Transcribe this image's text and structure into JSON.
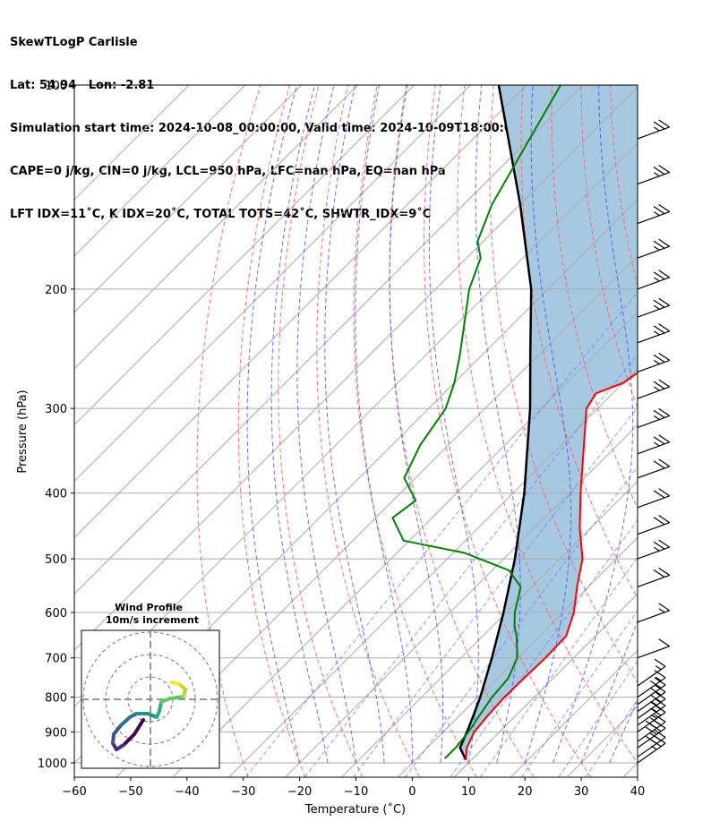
{
  "header": {
    "line1": "SkewTLogP Carlisle",
    "line2": "Lat: 54.94   Lon: -2.81",
    "line3": "Simulation start time: 2024-10-08_00:00:00, Valid time: 2024-10-09T18:00:00.00",
    "line4": "CAPE=0 j/kg, CIN=0 j/kg, LCL=950 hPa, LFC=nan hPa, EQ=nan hPa",
    "line5": "LFT IDX=11˚C, K IDX=20˚C, TOTAL TOTS=42˚C, SHWTR_IDX=9˚C"
  },
  "chart_data": {
    "type": "line",
    "title": "SkewTLogP Carlisle",
    "xlabel": "Temperature (˚C)",
    "ylabel": "Pressure (hPa)",
    "xlim": [
      -60,
      40
    ],
    "ylim": [
      1050,
      100
    ],
    "y_scale": "log",
    "x_ticks": [
      "−60",
      "−50",
      "−40",
      "−30",
      "−20",
      "−10",
      "0",
      "10",
      "20",
      "30",
      "40"
    ],
    "y_ticks": [
      "100",
      "200",
      "300",
      "400",
      "500",
      "600",
      "700",
      "800",
      "900",
      "1000"
    ],
    "grid": true,
    "colors": {
      "temperature": "#ff0000",
      "dewpoint": "#008000",
      "parcel": "#000000",
      "cape_fill": "#a6c8e1",
      "dry_adiabat": "#ff5a5a",
      "moist_adiabat": "#4a4aff",
      "mixing_ratio": "#7777ff",
      "isotherm": "#aaaaaa",
      "isobar": "#aaaaaa"
    },
    "series": [
      {
        "p": [
          990,
          950,
          900,
          850,
          800,
          750,
          700,
          650,
          600,
          550,
          500,
          450,
          400,
          350,
          300,
          285,
          275,
          250,
          200,
          150,
          120,
          100
        ],
        "t": [
          9,
          7,
          5.5,
          5,
          4.7,
          4.8,
          5,
          4.8,
          2,
          -2,
          -6,
          -12,
          -18,
          -24.5,
          -32,
          -33,
          -30,
          -28,
          -30,
          -33,
          -37,
          -38
        ]
      },
      {
        "p": [
          985,
          950,
          900,
          850,
          800,
          750,
          700,
          650,
          630,
          600,
          550,
          520,
          490,
          470,
          435,
          410,
          380,
          340,
          300,
          275,
          250,
          200,
          180,
          170,
          150,
          100
        ],
        "t": [
          5,
          5,
          4.5,
          3.5,
          2.5,
          2,
          0,
          -4,
          -6,
          -8.5,
          -12,
          -17,
          -28,
          -41,
          -47,
          -46,
          -52,
          -55,
          -57,
          -60,
          -64,
          -74,
          -77.5,
          -81,
          -85,
          -94
        ]
      },
      {
        "p": [
          990,
          950,
          900,
          850,
          800,
          700,
          600,
          500,
          400,
          300,
          250,
          200,
          150,
          100
        ],
        "t": [
          9,
          5.8,
          4.2,
          2.4,
          0.4,
          -4.5,
          -10.5,
          -18,
          -28,
          -42,
          -51.5,
          -63,
          -80,
          -105
        ]
      }
    ],
    "wind_barbs": {
      "p": [
        120,
        140,
        160,
        180,
        200,
        220,
        240,
        265,
        290,
        320,
        350,
        380,
        420,
        460,
        500,
        550,
        620,
        700,
        770,
        800,
        820,
        840,
        860,
        880,
        900,
        930,
        950,
        980,
        1000
      ],
      "speed_kt": [
        25,
        25,
        25,
        25,
        25,
        25,
        25,
        25,
        25,
        25,
        25,
        20,
        20,
        20,
        25,
        20,
        15,
        10,
        15,
        15,
        20,
        20,
        25,
        25,
        25,
        30,
        30,
        30,
        25
      ]
    },
    "inset": {
      "title": "Wind Profile",
      "subtitle": "10m/s increment",
      "rings": 3,
      "hodograph_colormap": "viridis"
    }
  }
}
